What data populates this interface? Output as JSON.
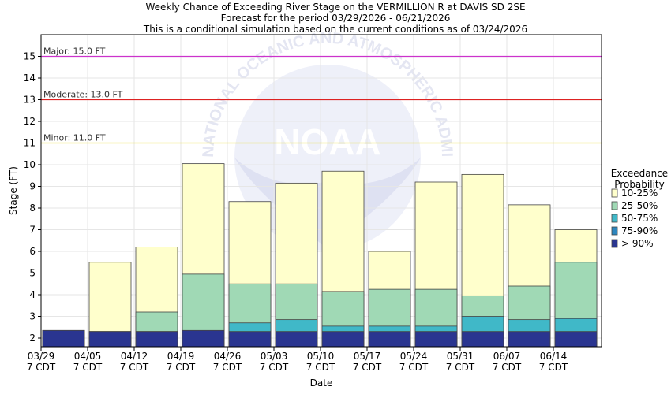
{
  "chart_data": {
    "type": "bar",
    "title": [
      "Weekly Chance of Exceeding River Stage on the VERMILLION R at DAVIS SD 2SE",
      "Forecast for the period 03/29/2026 - 06/21/2026",
      "This is a conditional simulation based on the current conditions as of 03/24/2026"
    ],
    "xlabel": "Date",
    "ylabel": "Stage (FT)",
    "ylim": [
      1.6,
      16.0
    ],
    "yticks": [
      2,
      3,
      4,
      5,
      6,
      7,
      8,
      9,
      10,
      11,
      12,
      13,
      14,
      15
    ],
    "xticks": [
      {
        "date": "03/29",
        "time": "7 CDT"
      },
      {
        "date": "04/05",
        "time": "7 CDT"
      },
      {
        "date": "04/12",
        "time": "7 CDT"
      },
      {
        "date": "04/19",
        "time": "7 CDT"
      },
      {
        "date": "04/26",
        "time": "7 CDT"
      },
      {
        "date": "05/03",
        "time": "7 CDT"
      },
      {
        "date": "05/10",
        "time": "7 CDT"
      },
      {
        "date": "05/17",
        "time": "7 CDT"
      },
      {
        "date": "05/24",
        "time": "7 CDT"
      },
      {
        "date": "05/31",
        "time": "7 CDT"
      },
      {
        "date": "06/07",
        "time": "7 CDT"
      },
      {
        "date": "06/14",
        "time": "7 CDT"
      }
    ],
    "thresholds": [
      {
        "label": "Major: 15.0 FT",
        "value": 15.0,
        "color": "#cc33cc"
      },
      {
        "label": "Moderate: 13.0 FT",
        "value": 13.0,
        "color": "#dd2222"
      },
      {
        "label": "Minor: 11.0 FT",
        "value": 11.0,
        "color": "#e6d619"
      }
    ],
    "legend_title": [
      "Exceedance",
      "Probability"
    ],
    "legend_position": "right",
    "series": [
      {
        "name": "> 90%",
        "color": "#2a3590",
        "values": [
          2.35,
          2.3,
          2.3,
          2.35,
          2.3,
          2.3,
          2.3,
          2.3,
          2.3,
          2.3,
          2.3,
          2.3
        ]
      },
      {
        "name": "75-90%",
        "color": "#2e86be",
        "values": [
          2.35,
          2.3,
          2.3,
          2.35,
          2.3,
          2.3,
          2.3,
          2.3,
          2.3,
          2.3,
          2.3,
          2.3
        ]
      },
      {
        "name": "50-75%",
        "color": "#40b8c8",
        "values": [
          2.35,
          2.3,
          2.3,
          2.35,
          2.7,
          2.85,
          2.55,
          2.55,
          2.55,
          3.0,
          2.85,
          2.9
        ]
      },
      {
        "name": "25-50%",
        "color": "#a0d9b5",
        "values": [
          2.35,
          2.3,
          3.2,
          4.95,
          4.5,
          4.5,
          4.15,
          4.25,
          4.25,
          3.95,
          4.4,
          5.5
        ]
      },
      {
        "name": "10-25%",
        "color": "#ffffcc",
        "values": [
          2.35,
          5.5,
          6.2,
          10.05,
          8.3,
          9.15,
          9.7,
          6.0,
          9.2,
          9.55,
          8.15,
          7.0
        ]
      }
    ],
    "legend_order": [
      "10-25%",
      "25-50%",
      "50-75%",
      "75-90%",
      "> 90%"
    ],
    "watermark_text": "NATIONAL OCEANIC AND ATMOSPHERIC ADMINISTRATION · NOAA"
  }
}
